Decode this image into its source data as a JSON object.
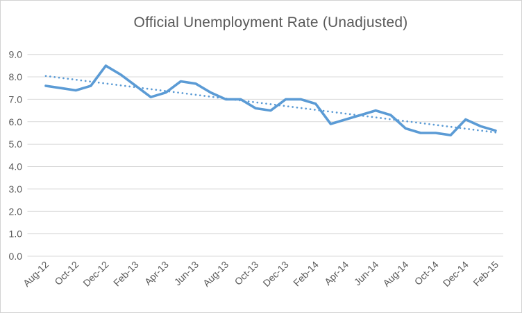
{
  "window": {
    "background_color": "#ffffff",
    "border_color": "#d2d2d2"
  },
  "chart_data": {
    "type": "line",
    "title": "Official Unemployment Rate (Unadjusted)",
    "x": [
      "Aug-12",
      "Sep-12",
      "Oct-12",
      "Nov-12",
      "Dec-12",
      "Jan-13",
      "Feb-13",
      "Mar-13",
      "Apr-13",
      "May-13",
      "Jun-13",
      "Jul-13",
      "Aug-13",
      "Sep-13",
      "Oct-13",
      "Nov-13",
      "Dec-13",
      "Jan-14",
      "Feb-14",
      "Mar-14",
      "Apr-14",
      "May-14",
      "Jun-14",
      "Jul-14",
      "Aug-14",
      "Sep-14",
      "Oct-14",
      "Nov-14",
      "Dec-14",
      "Jan-15",
      "Feb-15"
    ],
    "series": [
      {
        "name": "unemployment-rate",
        "style": "solid",
        "color": "#5b9bd5",
        "values": [
          7.6,
          7.5,
          7.4,
          7.6,
          8.5,
          8.1,
          7.6,
          7.1,
          7.3,
          7.8,
          7.7,
          7.3,
          7.0,
          7.0,
          6.6,
          6.5,
          7.0,
          7.0,
          6.8,
          5.9,
          6.1,
          6.3,
          6.5,
          6.3,
          5.7,
          5.5,
          5.5,
          5.4,
          6.1,
          5.8,
          5.6
        ]
      },
      {
        "name": "linear-trendline",
        "style": "dotted",
        "color": "#5b9bd5",
        "trend_start": 8.04,
        "trend_end": 5.52
      }
    ],
    "x_tick_labels": [
      "Aug-12",
      "Oct-12",
      "Dec-12",
      "Feb-13",
      "Apr-13",
      "Jun-13",
      "Aug-13",
      "Oct-13",
      "Dec-13",
      "Feb-14",
      "Apr-14",
      "Jun-14",
      "Aug-14",
      "Oct-14",
      "Dec-14",
      "Feb-15"
    ],
    "x_tick_interval": 2,
    "y_ticks": [
      "0.0",
      "1.0",
      "2.0",
      "3.0",
      "4.0",
      "5.0",
      "6.0",
      "7.0",
      "8.0",
      "9.0"
    ],
    "ylim": [
      0,
      9
    ],
    "xlabel": "",
    "ylabel": "",
    "grid": "horizontal",
    "gridline_color": "#d9d9d9",
    "axis_label_color": "#595959",
    "title_color": "#595959",
    "legend": "none"
  }
}
